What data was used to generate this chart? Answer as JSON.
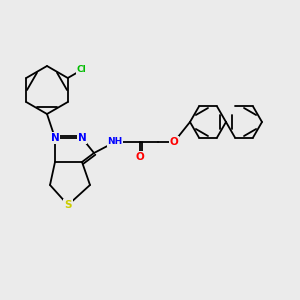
{
  "background_color": "#ebebeb",
  "atom_colors": {
    "N": "#0000ff",
    "O": "#ff0000",
    "S": "#cccc00",
    "Cl": "#00bb00",
    "C": "#000000",
    "H": "#4488aa"
  },
  "bond_color": "#000000",
  "lw": 1.3,
  "fs": 7.5,
  "figsize": [
    3.0,
    3.0
  ],
  "dpi": 100
}
